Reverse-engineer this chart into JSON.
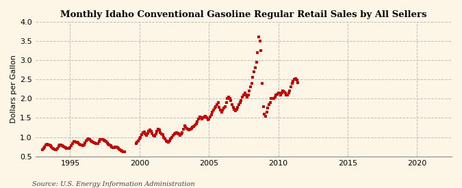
{
  "title": "Monthly Idaho Conventional Gasoline Regular Retail Sales by All Sellers",
  "ylabel": "Dollars per Gallon",
  "source": "Source: U.S. Energy Information Administration",
  "bg_color": "#FDF5E6",
  "plot_bg_color": "#FDF5E6",
  "marker_color": "#CC0000",
  "marker": "s",
  "marker_size": 3.5,
  "ylim": [
    0.5,
    4.0
  ],
  "xlim_start": 1992.5,
  "xlim_end": 2022.5,
  "xticks": [
    1995,
    2000,
    2005,
    2010,
    2015,
    2020
  ],
  "yticks": [
    0.5,
    1.0,
    1.5,
    2.0,
    2.5,
    3.0,
    3.5,
    4.0
  ],
  "data_x": [
    1993.0,
    1993.08,
    1993.17,
    1993.25,
    1993.33,
    1993.42,
    1993.5,
    1993.58,
    1993.67,
    1993.75,
    1993.83,
    1993.92,
    1994.0,
    1994.08,
    1994.17,
    1994.25,
    1994.33,
    1994.42,
    1994.5,
    1994.58,
    1994.67,
    1994.75,
    1994.83,
    1994.92,
    1995.0,
    1995.08,
    1995.17,
    1995.25,
    1995.33,
    1995.42,
    1995.5,
    1995.58,
    1995.67,
    1995.75,
    1995.83,
    1995.92,
    1996.0,
    1996.08,
    1996.17,
    1996.25,
    1996.33,
    1996.42,
    1996.5,
    1996.58,
    1996.67,
    1996.75,
    1996.83,
    1996.92,
    1997.0,
    1997.08,
    1997.17,
    1997.25,
    1997.33,
    1997.42,
    1997.5,
    1997.58,
    1997.67,
    1997.75,
    1997.83,
    1997.92,
    1998.0,
    1998.08,
    1998.17,
    1998.25,
    1998.33,
    1998.42,
    1998.5,
    1998.58,
    1998.67,
    1998.75,
    1998.83,
    1998.92,
    1999.75,
    1999.83,
    1999.92,
    2000.0,
    2000.08,
    2000.17,
    2000.25,
    2000.33,
    2000.42,
    2000.5,
    2000.58,
    2000.67,
    2000.75,
    2000.83,
    2000.92,
    2001.0,
    2001.08,
    2001.17,
    2001.25,
    2001.33,
    2001.42,
    2001.5,
    2001.58,
    2001.67,
    2001.75,
    2001.83,
    2001.92,
    2002.0,
    2002.08,
    2002.17,
    2002.25,
    2002.33,
    2002.42,
    2002.5,
    2002.58,
    2002.67,
    2002.75,
    2002.83,
    2002.92,
    2003.0,
    2003.08,
    2003.17,
    2003.25,
    2003.33,
    2003.42,
    2003.5,
    2003.58,
    2003.67,
    2003.75,
    2003.83,
    2003.92,
    2004.0,
    2004.08,
    2004.17,
    2004.25,
    2004.33,
    2004.42,
    2004.5,
    2004.58,
    2004.67,
    2004.75,
    2004.83,
    2004.92,
    2005.0,
    2005.08,
    2005.17,
    2005.25,
    2005.33,
    2005.42,
    2005.5,
    2005.58,
    2005.67,
    2005.75,
    2005.83,
    2005.92,
    2006.0,
    2006.08,
    2006.17,
    2006.25,
    2006.33,
    2006.42,
    2006.5,
    2006.58,
    2006.67,
    2006.75,
    2006.83,
    2006.92,
    2007.0,
    2007.08,
    2007.17,
    2007.25,
    2007.33,
    2007.42,
    2007.5,
    2007.58,
    2007.67,
    2007.75,
    2007.83,
    2007.92,
    2008.0,
    2008.08,
    2008.17,
    2008.25,
    2008.33,
    2008.42,
    2008.5,
    2008.58,
    2008.67,
    2008.75,
    2008.83,
    2008.92,
    2009.0,
    2009.08,
    2009.17,
    2009.25,
    2009.33,
    2009.42,
    2009.5,
    2009.58,
    2009.67,
    2009.75,
    2009.83,
    2009.92,
    2010.0,
    2010.08,
    2010.17,
    2010.25,
    2010.33,
    2010.42,
    2010.5,
    2010.58,
    2010.67,
    2010.75,
    2010.83,
    2010.92,
    2011.0,
    2011.08,
    2011.17,
    2011.25,
    2011.33,
    2011.42
  ],
  "data_y": [
    0.67,
    0.7,
    0.74,
    0.79,
    0.82,
    0.8,
    0.79,
    0.77,
    0.74,
    0.71,
    0.69,
    0.68,
    0.68,
    0.71,
    0.76,
    0.79,
    0.79,
    0.78,
    0.76,
    0.75,
    0.73,
    0.71,
    0.7,
    0.7,
    0.73,
    0.77,
    0.84,
    0.88,
    0.88,
    0.87,
    0.86,
    0.85,
    0.82,
    0.8,
    0.79,
    0.78,
    0.8,
    0.85,
    0.9,
    0.93,
    0.95,
    0.93,
    0.9,
    0.88,
    0.86,
    0.85,
    0.84,
    0.83,
    0.84,
    0.88,
    0.93,
    0.93,
    0.94,
    0.92,
    0.9,
    0.88,
    0.85,
    0.82,
    0.8,
    0.78,
    0.75,
    0.73,
    0.72,
    0.74,
    0.75,
    0.73,
    0.7,
    0.68,
    0.65,
    0.63,
    0.62,
    0.62,
    0.84,
    0.87,
    0.9,
    0.95,
    1.0,
    1.07,
    1.12,
    1.13,
    1.08,
    1.05,
    1.1,
    1.15,
    1.18,
    1.15,
    1.1,
    1.05,
    1.02,
    1.08,
    1.15,
    1.2,
    1.18,
    1.12,
    1.08,
    1.06,
    1.0,
    0.95,
    0.9,
    0.88,
    0.87,
    0.9,
    0.95,
    1.0,
    1.05,
    1.08,
    1.1,
    1.12,
    1.1,
    1.08,
    1.05,
    1.08,
    1.12,
    1.2,
    1.3,
    1.25,
    1.22,
    1.2,
    1.18,
    1.2,
    1.22,
    1.25,
    1.28,
    1.32,
    1.35,
    1.4,
    1.48,
    1.52,
    1.5,
    1.48,
    1.5,
    1.52,
    1.55,
    1.5,
    1.45,
    1.48,
    1.52,
    1.58,
    1.65,
    1.7,
    1.75,
    1.8,
    1.85,
    1.9,
    1.78,
    1.7,
    1.65,
    1.7,
    1.75,
    1.8,
    1.9,
    2.0,
    2.05,
    2.0,
    1.95,
    1.85,
    1.78,
    1.72,
    1.68,
    1.72,
    1.78,
    1.85,
    1.9,
    1.95,
    2.05,
    2.1,
    2.15,
    2.1,
    2.05,
    2.1,
    2.2,
    2.3,
    2.4,
    2.55,
    2.7,
    2.8,
    2.95,
    3.2,
    3.6,
    3.5,
    3.25,
    2.4,
    1.8,
    1.6,
    1.55,
    1.65,
    1.75,
    1.85,
    1.9,
    2.0,
    2.0,
    2.0,
    2.05,
    2.1,
    2.12,
    2.15,
    2.15,
    2.1,
    2.15,
    2.2,
    2.18,
    2.15,
    2.1,
    2.1,
    2.15,
    2.2,
    2.3,
    2.4,
    2.45,
    2.5,
    2.52,
    2.48,
    2.42
  ]
}
